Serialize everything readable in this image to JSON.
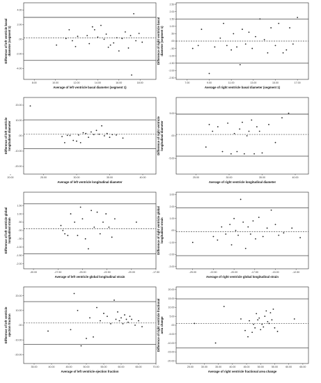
{
  "figure": {
    "panels": [
      {
        "id": "lv-basal",
        "row": 0,
        "col": 0
      },
      {
        "id": "rv-basal",
        "row": 0,
        "col": 1
      },
      {
        "id": "lv-long",
        "row": 1,
        "col": 0
      },
      {
        "id": "rv-long",
        "row": 1,
        "col": 1
      },
      {
        "id": "lv-gls",
        "row": 2,
        "col": 0
      },
      {
        "id": "rv-gls",
        "row": 2,
        "col": 1
      },
      {
        "id": "lv-ef",
        "row": 3,
        "col": 0
      },
      {
        "id": "rv-fac",
        "row": 3,
        "col": 1
      }
    ]
  },
  "chart_data": [
    {
      "type": "scatter",
      "subtype": "bland-altman",
      "xlabel": "Average of left ventricle basal diameter (segment 1)",
      "ylabel": "Difference of left ventricle basal diameter (segment 1)",
      "xlim": [
        7.0,
        19.5
      ],
      "ylim": [
        -5.5,
        5.0
      ],
      "xticks": [
        "8.00",
        "10.00",
        "12.00",
        "14.00",
        "16.00",
        "18.00"
      ],
      "yticks": [
        "4.00",
        "2.00",
        ".00",
        "-2.00",
        "-4.00"
      ],
      "yticks_values": [
        4,
        2,
        0,
        -2,
        -4
      ],
      "mean_diff": 0.2,
      "loa": [
        3.0,
        -2.9
      ],
      "x": [
        10.1,
        11.0,
        11.3,
        11.6,
        11.9,
        12.1,
        13.0,
        13.2,
        13.5,
        13.7,
        14.0,
        14.3,
        14.6,
        14.8,
        15.0,
        15.2,
        15.5,
        15.8,
        16.0,
        16.3,
        16.6,
        16.9,
        17.1,
        17.4,
        17.6,
        17.9,
        18.2,
        17.2
      ],
      "y": [
        -0.8,
        0.1,
        1.3,
        -0.2,
        -1.0,
        0.4,
        0.5,
        -0.6,
        1.7,
        1.3,
        0.3,
        1.9,
        0.0,
        0.7,
        -1.1,
        -0.8,
        -0.5,
        0.2,
        -1.6,
        0.1,
        1.0,
        -1.2,
        0.5,
        3.5,
        -0.2,
        0.8,
        -0.4,
        -4.9
      ]
    },
    {
      "type": "scatter",
      "subtype": "bland-altman",
      "xlabel": "Average of right ventricle basal diameter (segment 1)",
      "ylabel": "Difference of right ventricle basal diameter (segment 1)",
      "xlim": [
        6.0,
        18.0
      ],
      "ylim": [
        -2.6,
        2.6
      ],
      "xticks": [
        "7.00",
        "9.00",
        "11.00",
        "13.00",
        "15.00",
        "17.00"
      ],
      "yticks": [
        "2.50",
        "2.00",
        "1.50",
        "1.00",
        ".50",
        ".00",
        "-.50",
        "-1.00",
        "-1.50",
        "-2.00",
        "-2.50"
      ],
      "yticks_values": [
        2.5,
        2.0,
        1.5,
        1.0,
        0.5,
        0.0,
        -0.5,
        -1.0,
        -1.5,
        -2.0,
        -2.5
      ],
      "mean_diff": 0.0,
      "loa": [
        1.5,
        -1.5
      ],
      "x": [
        7.5,
        8.0,
        8.3,
        9.0,
        9.5,
        10.0,
        10.3,
        10.6,
        11.0,
        11.2,
        11.5,
        11.8,
        12.0,
        12.3,
        12.6,
        12.9,
        13.2,
        13.6,
        14.0,
        14.3,
        14.6,
        15.0,
        15.3,
        15.7,
        16.0,
        16.3,
        16.6,
        17.0
      ],
      "y": [
        -0.5,
        -0.3,
        0.8,
        -2.2,
        -0.4,
        0.2,
        1.2,
        -0.3,
        -0.6,
        0.5,
        -0.4,
        -1.6,
        0.8,
        -0.2,
        0.6,
        -0.5,
        0.3,
        1.5,
        0.1,
        -0.8,
        0.9,
        -0.3,
        1.2,
        -0.8,
        -0.6,
        0.9,
        -0.2,
        1.6
      ]
    },
    {
      "type": "scatter",
      "subtype": "bland-altman",
      "xlabel": "Average of left ventricle longitudinal diameter",
      "ylabel": "Difference of left ventricle longitudinal diameter",
      "xlim": [
        22.0,
        42.0
      ],
      "ylim": [
        -25.0,
        25.0
      ],
      "xticks": [
        "20.00",
        "25.00",
        "30.00",
        "35.00",
        "40.00"
      ],
      "yticks": [
        "20.00",
        "10.00",
        ".00",
        "-10.00",
        "-20.00"
      ],
      "yticks_values": [
        20,
        10,
        0,
        -10,
        -20
      ],
      "mean_diff": 1.0,
      "loa": [
        10.4,
        -8.4
      ],
      "x": [
        23.0,
        27.8,
        28.2,
        28.6,
        29.0,
        29.5,
        30.0,
        30.3,
        30.6,
        31.0,
        31.4,
        31.8,
        32.2,
        32.6,
        33.0,
        33.4,
        33.8,
        34.2,
        34.6,
        35.0,
        35.4,
        36.0,
        37.0
      ],
      "y": [
        19.5,
        -0.5,
        -4.5,
        0.3,
        0.2,
        -3.0,
        -3.5,
        0.5,
        -4.5,
        2.0,
        1.5,
        -1.0,
        2.5,
        0.8,
        3.5,
        1.0,
        6.5,
        0.0,
        1.5,
        -1.0,
        0.8,
        0.5,
        -1.5
      ]
    },
    {
      "type": "scatter",
      "subtype": "bland-altman",
      "xlabel": "Average of right ventricle longitudinal diameter",
      "ylabel": "Difference of right ventricle longitudinal diameter",
      "xlim": [
        22.0,
        42.0
      ],
      "ylim": [
        -8.5,
        8.5
      ],
      "xticks": [
        "25.00",
        "30.00",
        "35.00",
        "40.00"
      ],
      "yticks": [
        "5.00",
        ".00",
        "-5.00"
      ],
      "yticks_values": [
        5,
        0,
        -5
      ],
      "mean_diff": 0.3,
      "loa": [
        4.8,
        -4.5
      ],
      "x": [
        26.5,
        27.0,
        27.5,
        28.3,
        29.0,
        29.8,
        30.3,
        30.8,
        31.2,
        31.6,
        32.0,
        32.3,
        32.7,
        33.0,
        33.4,
        33.8,
        34.2,
        34.6,
        35.0,
        36.0,
        37.0,
        38.0,
        39.0
      ],
      "y": [
        -2.5,
        2.5,
        1.0,
        2.0,
        -3.5,
        2.8,
        -4.0,
        0.5,
        -3.5,
        1.5,
        3.0,
        -4.0,
        0.0,
        1.0,
        3.5,
        -4.0,
        2.0,
        1.0,
        -3.8,
        2.5,
        -1.5,
        4.0,
        5.0
      ]
    },
    {
      "type": "scatter",
      "subtype": "bland-altman",
      "xlabel": "Average of left ventricle global longitudinal strain",
      "ylabel": "Difference of left ventricle global longitudinal strain",
      "xlim": [
        -31.0,
        -17.5
      ],
      "ylim": [
        -2.3,
        2.3
      ],
      "xticks": [
        "-30.00",
        "-27.50",
        "-25.00",
        "-22.50",
        "-20.00",
        "-17.50"
      ],
      "yticks": [
        "1.50",
        "1.00",
        ".50",
        ".00",
        "-.50",
        "-1.00",
        "-1.50",
        "-2.00"
      ],
      "yticks_values": [
        1.5,
        1.0,
        0.5,
        0.0,
        -0.5,
        -1.0,
        -1.5,
        -2.0
      ],
      "mean_diff": 0.1,
      "loa": [
        1.6,
        -1.4
      ],
      "x": [
        -27.2,
        -27.0,
        -26.8,
        -26.5,
        -26.2,
        -25.8,
        -25.5,
        -25.2,
        -25.0,
        -24.7,
        -24.4,
        -24.1,
        -23.8,
        -23.5,
        -23.2,
        -22.9,
        -22.6,
        -22.3,
        -22.0,
        -21.7,
        -19.5
      ],
      "y": [
        0.3,
        0.0,
        -0.2,
        -0.3,
        1.0,
        0.5,
        -0.3,
        1.4,
        0.7,
        -0.5,
        -1.1,
        1.2,
        0.2,
        1.1,
        -0.2,
        0.5,
        1.0,
        0.2,
        -0.4,
        0.7,
        0.5
      ]
    },
    {
      "type": "scatter",
      "subtype": "bland-altman",
      "xlabel": "Average of right ventricle global longitudinal strain",
      "ylabel": "Difference of right ventricle global longitudinal strain",
      "xlim": [
        -27.0,
        -11.0
      ],
      "ylim": [
        -3.2,
        3.2
      ],
      "xticks": [
        "-25.00",
        "-22.50",
        "-20.00",
        "-17.50",
        "-15.00",
        "-12.50"
      ],
      "yticks": [
        "3.00",
        "2.00",
        "1.00",
        ".00",
        "-1.00",
        "-2.00",
        "-3.00"
      ],
      "yticks_values": [
        3,
        2,
        1,
        0,
        -1,
        -2,
        -3
      ],
      "mean_diff": -0.1,
      "loa": [
        1.9,
        -2.1
      ],
      "x": [
        -25.0,
        -22.5,
        -22.0,
        -21.5,
        -21.0,
        -20.5,
        -20.3,
        -20.0,
        -19.8,
        -19.5,
        -19.2,
        -18.9,
        -18.6,
        -18.3,
        -18.0,
        -17.7,
        -17.4,
        -17.0,
        -16.5,
        -16.0,
        -15.5,
        -15.0,
        -14.6,
        -14.0,
        -13.0,
        -12.0
      ],
      "y": [
        -1.0,
        -0.5,
        -0.8,
        0.3,
        -0.3,
        0.5,
        -1.2,
        1.0,
        0.0,
        -0.4,
        2.6,
        0.7,
        -1.5,
        0.3,
        -0.3,
        0.8,
        -0.7,
        1.1,
        -0.5,
        0.2,
        1.7,
        0.5,
        -0.4,
        -0.2,
        0.2,
        -0.6
      ]
    },
    {
      "type": "scatter",
      "subtype": "bland-altman",
      "xlabel": "Average of left ventricle ejection fraction",
      "ylabel": "Difference of left ventricle ejection fraction",
      "xlim": [
        32.0,
        70.0
      ],
      "ylim": [
        -26.0,
        26.0
      ],
      "xticks": [
        "35.00",
        "40.00",
        "45.00",
        "50.00",
        "55.00",
        "60.00",
        "65.00",
        "70.00"
      ],
      "yticks": [
        "20.00",
        "10.00",
        ".00",
        "-10.00",
        "-20.00"
      ],
      "yticks_values": [
        20,
        10,
        0,
        -10,
        -20
      ],
      "mean_diff": 1.5,
      "loa": [
        16.0,
        -13.0
      ],
      "x": [
        39.0,
        45.5,
        46.5,
        47.5,
        48.5,
        50.0,
        51.0,
        52.0,
        53.0,
        54.0,
        55.0,
        56.0,
        57.0,
        58.0,
        58.5,
        59.0,
        59.5,
        60.0,
        60.5,
        61.0,
        61.5,
        62.0,
        62.5,
        63.0,
        64.0,
        65.0,
        66.0
      ],
      "y": [
        -4.0,
        -3.0,
        21.5,
        10.0,
        -14.0,
        -9.0,
        5.0,
        -8.0,
        12.0,
        3.0,
        8.0,
        6.0,
        1.0,
        17.0,
        4.0,
        9.0,
        3.0,
        5.0,
        1.0,
        7.0,
        4.0,
        2.0,
        6.0,
        4.0,
        0.0,
        3.0,
        -1.0
      ]
    },
    {
      "type": "scatter",
      "subtype": "bland-altman",
      "xlabel": "Average of right ventricle fractional area change",
      "ylabel": "Difference of right ventricle fractional area change",
      "xlim": [
        20.0,
        67.0
      ],
      "ylim": [
        -21.5,
        21.5
      ],
      "xticks": [
        "25.00",
        "30.00",
        "35.00",
        "40.00",
        "45.00",
        "50.00",
        "55.00",
        "60.00",
        "65.00"
      ],
      "yticks": [
        "20.00",
        "15.00",
        "10.00",
        "5.00",
        ".00",
        "-5.00",
        "-10.00",
        "-15.00",
        "-20.00"
      ],
      "yticks_values": [
        20,
        15,
        10,
        5,
        0,
        -5,
        -10,
        -15,
        -20
      ],
      "mean_diff": 1.0,
      "loa": [
        14.8,
        -12.8
      ],
      "x": [
        26.5,
        34.0,
        37.0,
        43.0,
        44.5,
        45.5,
        46.0,
        47.0,
        47.5,
        48.0,
        48.5,
        49.0,
        49.5,
        50.0,
        50.5,
        51.0,
        51.5,
        52.0,
        52.5,
        53.0,
        53.5,
        54.0,
        54.5,
        55.0,
        56.0,
        62.0
      ],
      "y": [
        1.0,
        -10.0,
        10.5,
        3.5,
        -3.0,
        -6.5,
        2.5,
        -4.0,
        0.5,
        -1.5,
        6.5,
        3.0,
        4.0,
        -2.5,
        0.5,
        -1.0,
        5.0,
        8.0,
        2.0,
        1.0,
        7.0,
        3.0,
        9.0,
        -1.5,
        -3.5,
        3.5
      ]
    }
  ]
}
